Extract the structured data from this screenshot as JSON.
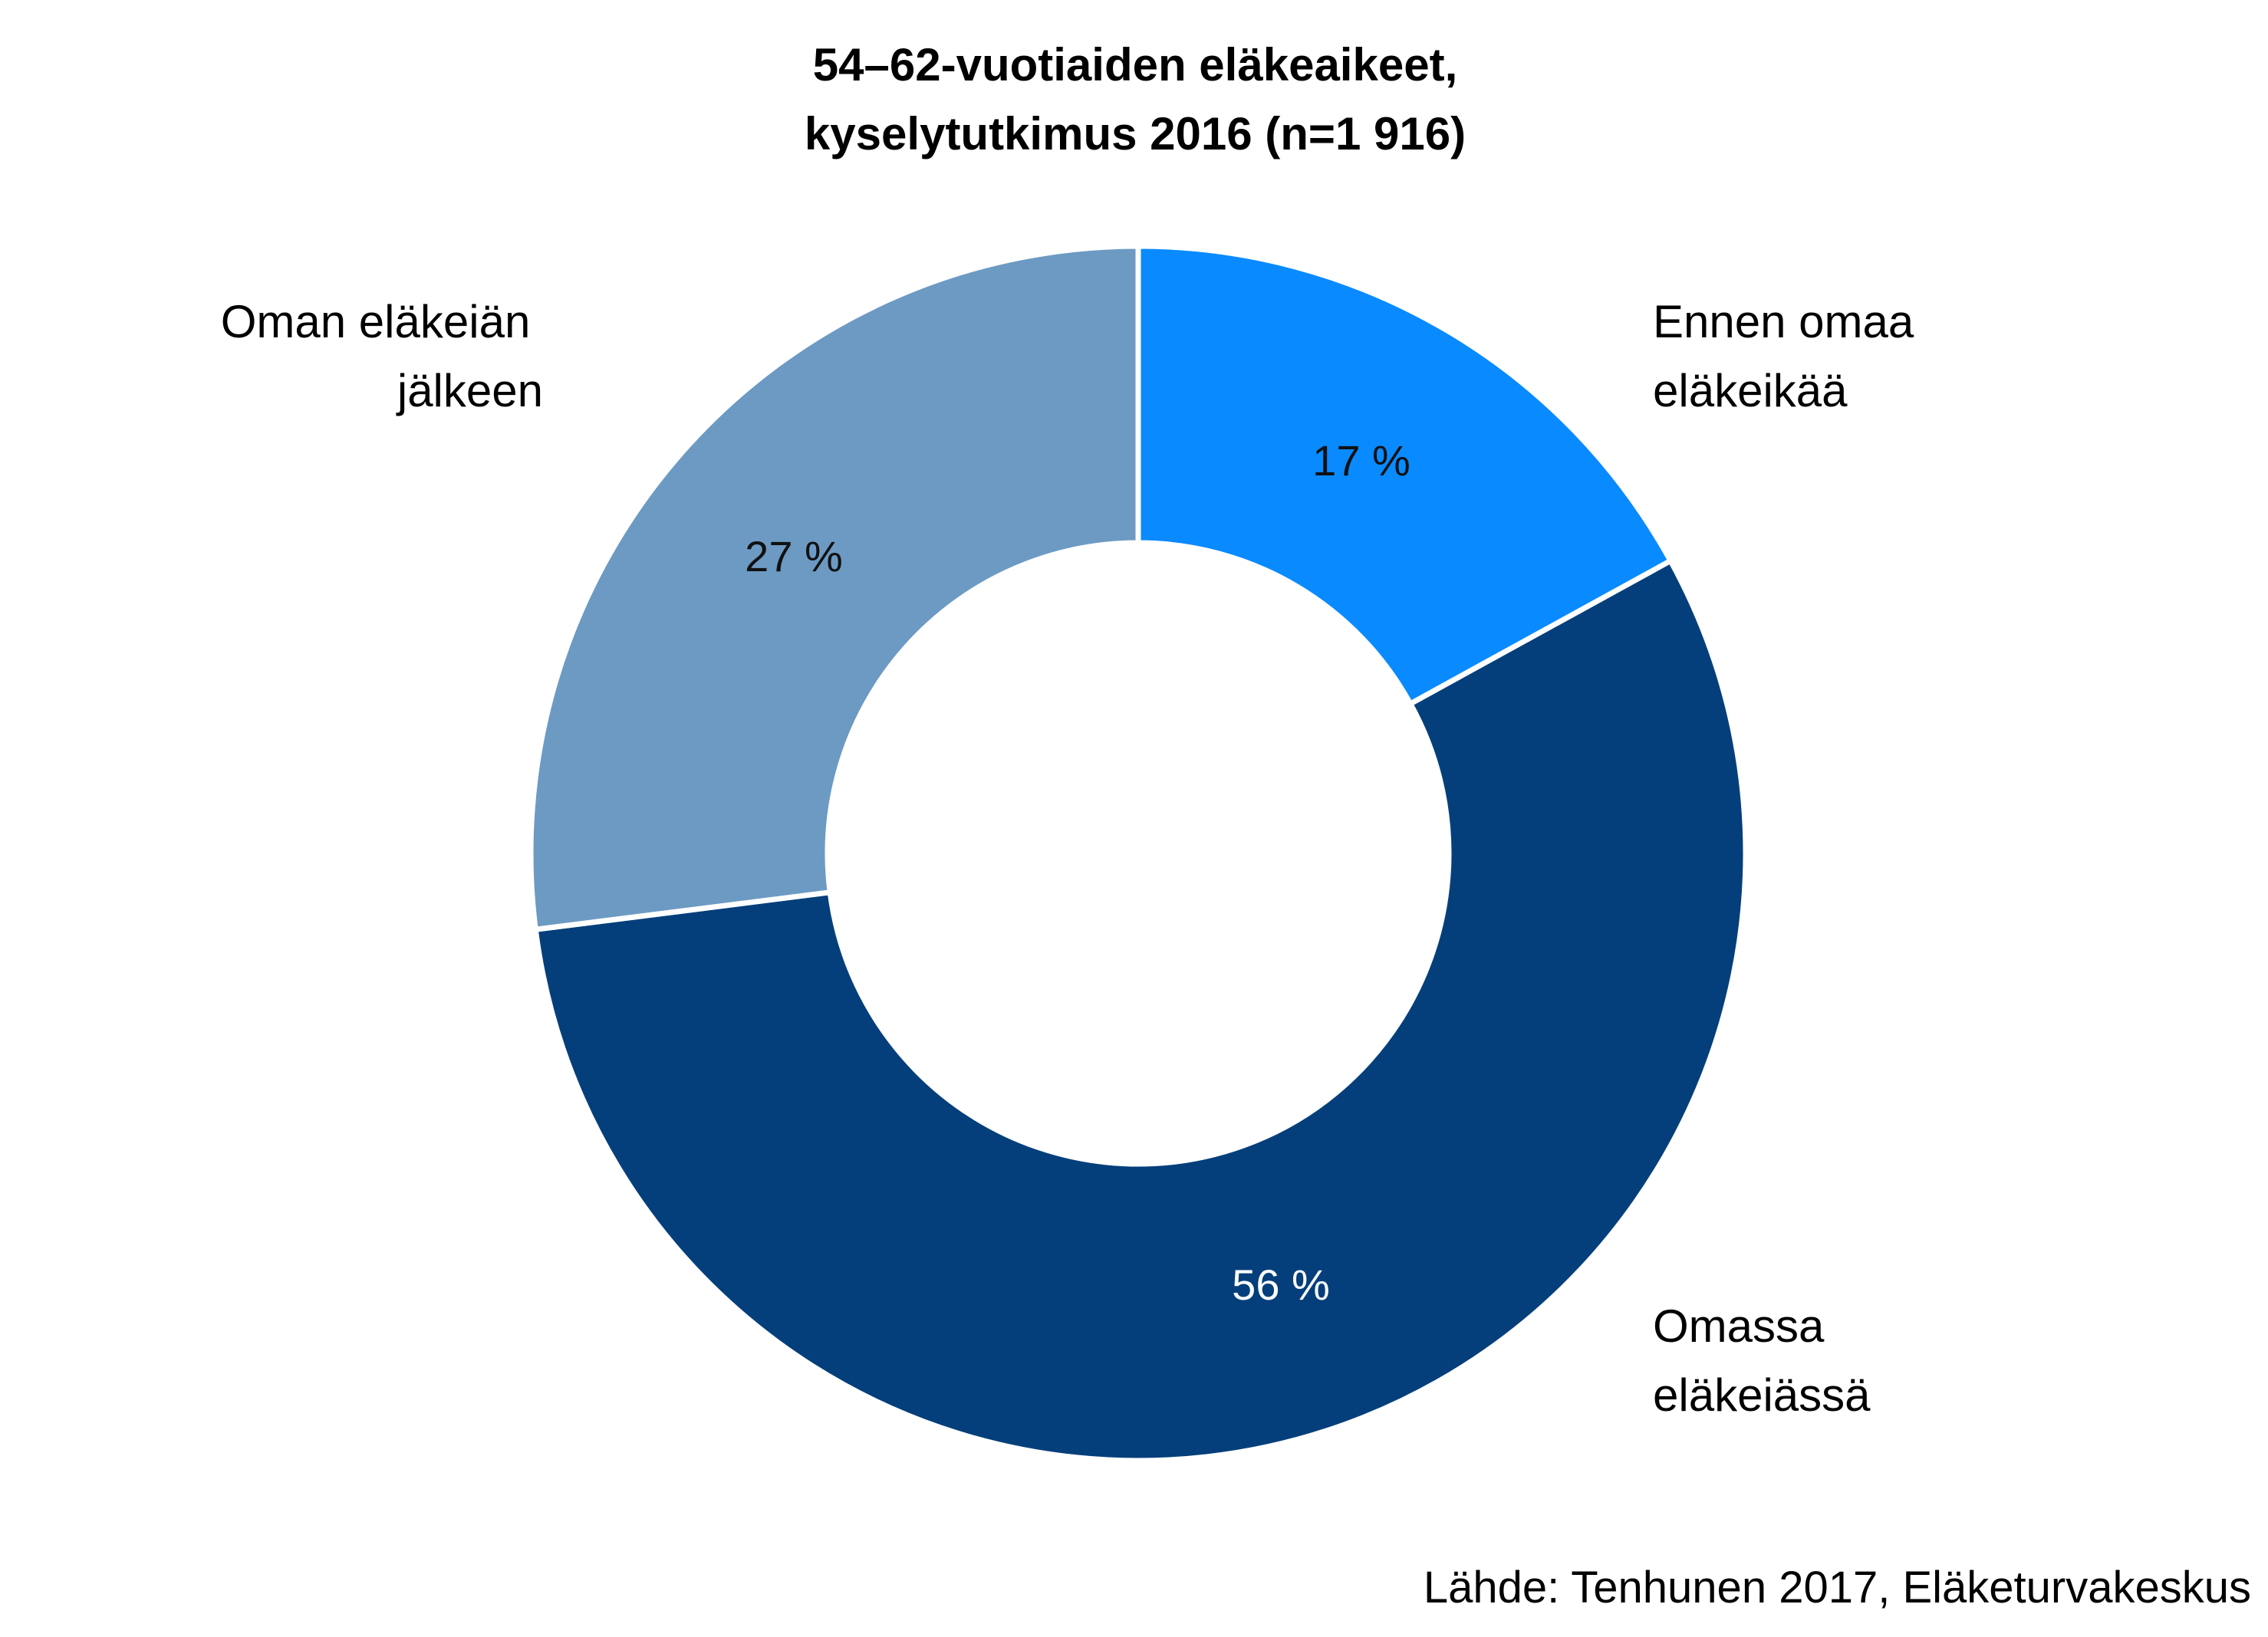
{
  "chart_data": {
    "type": "pie",
    "variant": "donut",
    "title": [
      "54–62-vuotiaiden eläkeaikeet,",
      "kyselytutkimus 2016 (n=1 916)"
    ],
    "slices": [
      {
        "label": [
          "Ennen omaa",
          "eläkeikää"
        ],
        "value": 17,
        "value_label": "17 %",
        "color": "#0A8AFF",
        "value_label_color": "#111111"
      },
      {
        "label": [
          "Omassa",
          "eläkeiässä"
        ],
        "value": 56,
        "value_label": "56 %",
        "color": "#053F7B",
        "value_label_color": "#ffffff"
      },
      {
        "label": [
          "Oman eläkeiän",
          "jälkeen"
        ],
        "value": 27,
        "value_label": "27 %",
        "color": "#6C9AC3",
        "value_label_color": "#111111"
      }
    ],
    "source": "Lähde: Tenhunen 2017, Eläketurvakeskus"
  }
}
